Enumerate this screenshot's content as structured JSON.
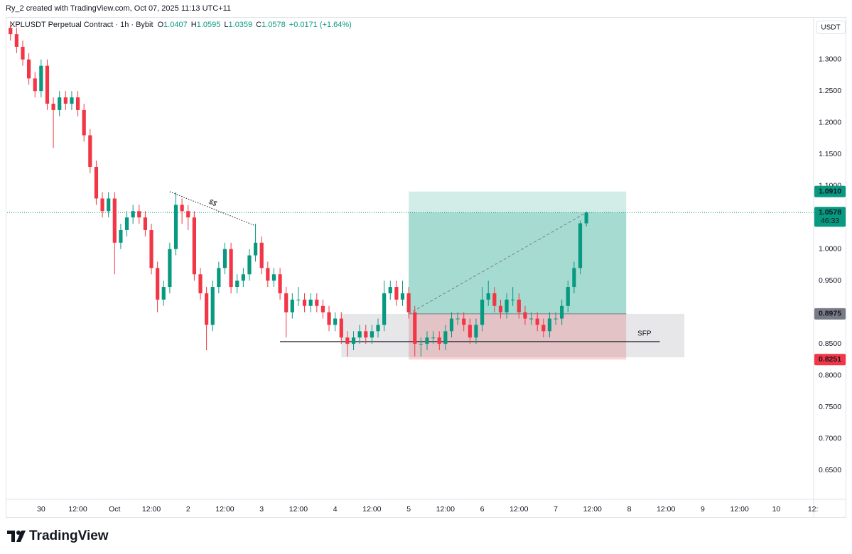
{
  "chart_data": {
    "type": "candlestick",
    "credit": "Ry_2 created with TradingView.com, Oct 07, 2025 11:13 UTC+11",
    "title": "XPLUSDT Perpetual Contract · 1h · Bybit",
    "ohlc_letters": [
      "O",
      "H",
      "L",
      "C"
    ],
    "change_label": "+0.0171 (+1.64%)",
    "currency": "USDT",
    "countdown": "46:33",
    "brand": "TradingView",
    "up_color": "#089981",
    "down_color": "#f23645",
    "xlim": [
      -11.1,
      252.2
    ],
    "ylim": [
      0.604,
      1.366
    ],
    "xticks": [
      {
        "value": 0,
        "label": "30"
      },
      {
        "value": 12,
        "label": "12:00"
      },
      {
        "value": 24,
        "label": "Oct"
      },
      {
        "value": 36,
        "label": "12:00"
      },
      {
        "value": 48,
        "label": "2"
      },
      {
        "value": 60,
        "label": "12:00"
      },
      {
        "value": 72,
        "label": "3"
      },
      {
        "value": 84,
        "label": "12:00"
      },
      {
        "value": 96,
        "label": "4"
      },
      {
        "value": 108,
        "label": "12:00"
      },
      {
        "value": 120,
        "label": "5"
      },
      {
        "value": 132,
        "label": "12:00"
      },
      {
        "value": 144,
        "label": "6"
      },
      {
        "value": 156,
        "label": "12:00"
      },
      {
        "value": 168,
        "label": "7"
      },
      {
        "value": 180,
        "label": "12:00"
      },
      {
        "value": 192,
        "label": "8"
      },
      {
        "value": 204,
        "label": "12:00"
      },
      {
        "value": 216,
        "label": "9"
      },
      {
        "value": 228,
        "label": "12:00"
      },
      {
        "value": 240,
        "label": "10"
      },
      {
        "value": 252,
        "label": "12:"
      }
    ],
    "yticks": [
      {
        "value": 0.65,
        "label": "0.6500"
      },
      {
        "value": 0.7,
        "label": "0.7000"
      },
      {
        "value": 0.75,
        "label": "0.7500"
      },
      {
        "value": 0.8,
        "label": "0.8000"
      },
      {
        "value": 0.85,
        "label": "0.8500"
      },
      {
        "value": 0.9,
        "label": "0.9000"
      },
      {
        "value": 0.95,
        "label": "0.9500"
      },
      {
        "value": 1.0,
        "label": "1.0000"
      },
      {
        "value": 1.05,
        "label": "1.0500"
      },
      {
        "value": 1.1,
        "label": "1.1000"
      },
      {
        "value": 1.15,
        "label": "1.1500"
      },
      {
        "value": 1.2,
        "label": "1.2000"
      },
      {
        "value": 1.25,
        "label": "1.2500"
      },
      {
        "value": 1.3,
        "label": "1.3000"
      }
    ],
    "x": [
      -10,
      -8,
      -6,
      -4,
      -2,
      0,
      2,
      4,
      6,
      8,
      10,
      12,
      14,
      16,
      18,
      20,
      22,
      24,
      26,
      28,
      30,
      32,
      34,
      36,
      38,
      40,
      42,
      44,
      46,
      48,
      50,
      52,
      54,
      56,
      58,
      60,
      62,
      64,
      66,
      68,
      70,
      72,
      74,
      76,
      78,
      80,
      82,
      84,
      86,
      88,
      90,
      92,
      94,
      96,
      98,
      100,
      102,
      104,
      106,
      108,
      110,
      112,
      114,
      116,
      118,
      120,
      122,
      124,
      126,
      128,
      130,
      132,
      134,
      136,
      138,
      140,
      142,
      144,
      146,
      148,
      150,
      152,
      154,
      156,
      158,
      160,
      162,
      164,
      166,
      168,
      170,
      172,
      174,
      176,
      178
    ],
    "open": [
      1.35,
      1.34,
      1.32,
      1.3,
      1.27,
      1.25,
      1.29,
      1.23,
      1.22,
      1.24,
      1.23,
      1.24,
      1.22,
      1.18,
      1.13,
      1.08,
      1.06,
      1.08,
      1.01,
      1.03,
      1.05,
      1.06,
      1.05,
      1.03,
      0.97,
      0.92,
      0.94,
      1.0,
      1.07,
      1.06,
      1.05,
      0.96,
      0.93,
      0.88,
      0.94,
      0.97,
      1.0,
      0.94,
      0.95,
      0.96,
      0.99,
      1.01,
      0.97,
      0.95,
      0.96,
      0.93,
      0.9,
      0.92,
      0.92,
      0.91,
      0.92,
      0.91,
      0.9,
      0.88,
      0.89,
      0.86,
      0.85,
      0.86,
      0.87,
      0.86,
      0.87,
      0.88,
      0.93,
      0.94,
      0.92,
      0.93,
      0.9,
      0.85,
      0.85,
      0.86,
      0.86,
      0.85,
      0.87,
      0.89,
      0.89,
      0.88,
      0.86,
      0.88,
      0.92,
      0.93,
      0.91,
      0.9,
      0.92,
      0.92,
      0.9,
      0.89,
      0.89,
      0.88,
      0.87,
      0.89,
      0.89,
      0.91,
      0.94,
      0.97,
      1.0407
    ],
    "high": [
      1.36,
      1.35,
      1.33,
      1.31,
      1.28,
      1.3,
      1.3,
      1.24,
      1.25,
      1.25,
      1.25,
      1.25,
      1.23,
      1.19,
      1.14,
      1.09,
      1.09,
      1.09,
      1.04,
      1.06,
      1.07,
      1.07,
      1.06,
      1.04,
      0.98,
      0.95,
      1.01,
      1.09,
      1.08,
      1.07,
      1.06,
      0.97,
      0.94,
      0.95,
      0.98,
      1.01,
      1.01,
      0.96,
      0.97,
      1.0,
      1.04,
      1.02,
      0.98,
      0.97,
      0.97,
      0.94,
      0.93,
      0.94,
      0.93,
      0.93,
      0.93,
      0.92,
      0.91,
      0.9,
      0.9,
      0.87,
      0.87,
      0.88,
      0.88,
      0.88,
      0.89,
      0.95,
      0.95,
      0.95,
      0.95,
      0.94,
      0.91,
      0.86,
      0.87,
      0.87,
      0.87,
      0.88,
      0.9,
      0.9,
      0.9,
      0.89,
      0.89,
      0.94,
      0.95,
      0.94,
      0.92,
      0.93,
      0.94,
      0.93,
      0.91,
      0.9,
      0.9,
      0.89,
      0.9,
      0.9,
      0.92,
      0.95,
      0.98,
      1.045,
      1.0595
    ],
    "low": [
      1.33,
      1.31,
      1.29,
      1.26,
      1.24,
      1.24,
      1.22,
      1.16,
      1.21,
      1.22,
      1.22,
      1.21,
      1.17,
      1.12,
      1.07,
      1.05,
      1.05,
      0.96,
      1.0,
      1.02,
      1.04,
      1.04,
      1.02,
      0.96,
      0.9,
      0.91,
      0.93,
      0.99,
      1.04,
      1.03,
      0.95,
      0.92,
      0.84,
      0.87,
      0.93,
      0.96,
      0.93,
      0.93,
      0.94,
      0.95,
      0.98,
      0.96,
      0.94,
      0.94,
      0.92,
      0.86,
      0.89,
      0.91,
      0.9,
      0.9,
      0.9,
      0.89,
      0.87,
      0.87,
      0.85,
      0.83,
      0.84,
      0.85,
      0.85,
      0.85,
      0.86,
      0.87,
      0.92,
      0.91,
      0.91,
      0.89,
      0.83,
      0.83,
      0.84,
      0.85,
      0.84,
      0.84,
      0.86,
      0.88,
      0.87,
      0.85,
      0.85,
      0.87,
      0.91,
      0.9,
      0.89,
      0.89,
      0.91,
      0.89,
      0.88,
      0.88,
      0.87,
      0.86,
      0.86,
      0.88,
      0.88,
      0.9,
      0.93,
      0.96,
      1.0359
    ],
    "close": [
      1.34,
      1.32,
      1.3,
      1.27,
      1.25,
      1.29,
      1.23,
      1.22,
      1.24,
      1.23,
      1.24,
      1.22,
      1.18,
      1.13,
      1.08,
      1.06,
      1.08,
      1.01,
      1.03,
      1.05,
      1.06,
      1.05,
      1.03,
      0.97,
      0.92,
      0.94,
      1.0,
      1.07,
      1.06,
      1.05,
      0.96,
      0.93,
      0.88,
      0.94,
      0.97,
      1.0,
      0.94,
      0.95,
      0.96,
      0.99,
      1.01,
      0.97,
      0.95,
      0.96,
      0.93,
      0.9,
      0.92,
      0.92,
      0.91,
      0.92,
      0.91,
      0.9,
      0.88,
      0.89,
      0.86,
      0.85,
      0.86,
      0.87,
      0.86,
      0.87,
      0.88,
      0.93,
      0.94,
      0.92,
      0.93,
      0.9,
      0.85,
      0.85,
      0.86,
      0.86,
      0.85,
      0.87,
      0.89,
      0.89,
      0.88,
      0.86,
      0.88,
      0.92,
      0.93,
      0.91,
      0.9,
      0.92,
      0.92,
      0.9,
      0.89,
      0.89,
      0.88,
      0.87,
      0.89,
      0.89,
      0.91,
      0.94,
      0.97,
      1.0407,
      1.0578
    ],
    "position": {
      "start": 120,
      "end": 191,
      "target": {
        "value": 1.091,
        "label": "1.0910"
      },
      "entry": 0.8975,
      "stop": 0.8251
    },
    "sfp": {
      "label": "SFP",
      "start": 98,
      "end": 210,
      "top": 0.8975,
      "bottom": 0.8288,
      "level": 0.8535,
      "line_start": 78,
      "line_end": 202
    },
    "liquidity": {
      "label": "$$",
      "start": 42,
      "end": 70,
      "from": 1.0908,
      "to": 1.0368
    }
  }
}
